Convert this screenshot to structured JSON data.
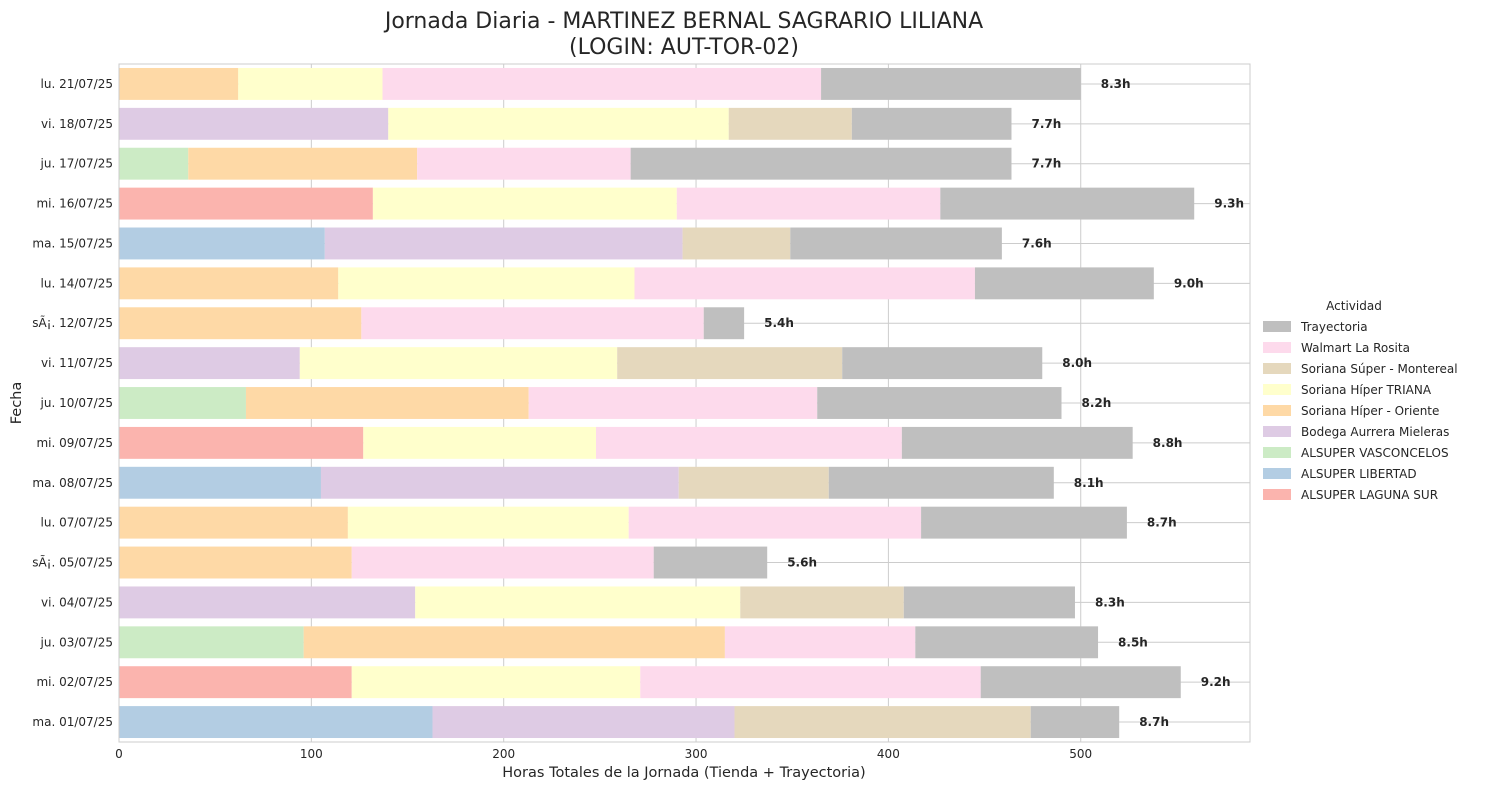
{
  "chart_data": {
    "type": "bar",
    "orientation": "horizontal",
    "stacked": true,
    "title_line1": "Jornada Diaria - MARTINEZ BERNAL SAGRARIO LILIANA",
    "title_line2": "(LOGIN: AUT-TOR-02)",
    "xlabel": "Horas Totales de la Jornada (Tienda + Trayectoria)",
    "ylabel": "Fecha",
    "xlim": [
      0,
      588
    ],
    "xticks": [
      0,
      100,
      200,
      300,
      400,
      500
    ],
    "grid": true,
    "legend": {
      "title": "Actividad",
      "placement": "right",
      "entries": [
        "Trayectoria",
        "Walmart La Rosita",
        "Soriana Súper - Montereal",
        "Soriana Híper TRIANA",
        "Soriana Híper - Oriente",
        "Bodega Aurrera Mieleras",
        "ALSUPER VASCONCELOS",
        "ALSUPER LIBERTAD",
        "ALSUPER LAGUNA SUR"
      ]
    },
    "colors": {
      "Trayectoria": "#bfbfbf",
      "Walmart La Rosita": "#fddaec",
      "Soriana Súper - Montereal": "#e5d8bd",
      "Soriana Híper TRIANA": "#ffffcc",
      "Soriana Híper - Oriente": "#fed9a6",
      "Bodega Aurrera Mieleras": "#decbe4",
      "ALSUPER VASCONCELOS": "#ccebc5",
      "ALSUPER LIBERTAD": "#b3cde3",
      "ALSUPER LAGUNA SUR": "#fbb4ae"
    },
    "categories": [
      "lu. 21/07/25",
      "vi. 18/07/25",
      "ju. 17/07/25",
      "mi. 16/07/25",
      "ma. 15/07/25",
      "lu. 14/07/25",
      "sÃ¡. 12/07/25",
      "vi. 11/07/25",
      "ju. 10/07/25",
      "mi. 09/07/25",
      "ma. 08/07/25",
      "lu. 07/07/25",
      "sÃ¡. 05/07/25",
      "vi. 04/07/25",
      "ju. 03/07/25",
      "mi. 02/07/25",
      "ma. 01/07/25"
    ],
    "rows": [
      {
        "date": "lu. 21/07/25",
        "total_label": "8.3h",
        "segments": [
          {
            "name": "Soriana Híper - Oriente",
            "value": 62
          },
          {
            "name": "Soriana Híper TRIANA",
            "value": 75
          },
          {
            "name": "Walmart La Rosita",
            "value": 228
          },
          {
            "name": "Trayectoria",
            "value": 135
          }
        ]
      },
      {
        "date": "vi. 18/07/25",
        "total_label": "7.7h",
        "segments": [
          {
            "name": "Bodega Aurrera Mieleras",
            "value": 140
          },
          {
            "name": "Soriana Híper TRIANA",
            "value": 177
          },
          {
            "name": "Soriana Súper - Montereal",
            "value": 64
          },
          {
            "name": "Trayectoria",
            "value": 83
          }
        ]
      },
      {
        "date": "ju. 17/07/25",
        "total_label": "7.7h",
        "segments": [
          {
            "name": "ALSUPER VASCONCELOS",
            "value": 36
          },
          {
            "name": "Soriana Híper - Oriente",
            "value": 119
          },
          {
            "name": "Walmart La Rosita",
            "value": 111
          },
          {
            "name": "Trayectoria",
            "value": 198
          }
        ]
      },
      {
        "date": "mi. 16/07/25",
        "total_label": "9.3h",
        "segments": [
          {
            "name": "ALSUPER LAGUNA SUR",
            "value": 132
          },
          {
            "name": "Soriana Híper TRIANA",
            "value": 158
          },
          {
            "name": "Walmart La Rosita",
            "value": 137
          },
          {
            "name": "Trayectoria",
            "value": 132
          }
        ]
      },
      {
        "date": "ma. 15/07/25",
        "total_label": "7.6h",
        "segments": [
          {
            "name": "ALSUPER LIBERTAD",
            "value": 107
          },
          {
            "name": "Bodega Aurrera Mieleras",
            "value": 186
          },
          {
            "name": "Soriana Súper - Montereal",
            "value": 56
          },
          {
            "name": "Trayectoria",
            "value": 110
          }
        ]
      },
      {
        "date": "lu. 14/07/25",
        "total_label": "9.0h",
        "segments": [
          {
            "name": "Soriana Híper - Oriente",
            "value": 114
          },
          {
            "name": "Soriana Híper TRIANA",
            "value": 154
          },
          {
            "name": "Walmart La Rosita",
            "value": 177
          },
          {
            "name": "Trayectoria",
            "value": 93
          }
        ]
      },
      {
        "date": "sÃ¡. 12/07/25",
        "total_label": "5.4h",
        "segments": [
          {
            "name": "Soriana Híper - Oriente",
            "value": 126
          },
          {
            "name": "Walmart La Rosita",
            "value": 178
          },
          {
            "name": "Trayectoria",
            "value": 21
          }
        ]
      },
      {
        "date": "vi. 11/07/25",
        "total_label": "8.0h",
        "segments": [
          {
            "name": "Bodega Aurrera Mieleras",
            "value": 94
          },
          {
            "name": "Soriana Híper TRIANA",
            "value": 165
          },
          {
            "name": "Soriana Súper - Montereal",
            "value": 117
          },
          {
            "name": "Trayectoria",
            "value": 104
          }
        ]
      },
      {
        "date": "ju. 10/07/25",
        "total_label": "8.2h",
        "segments": [
          {
            "name": "ALSUPER VASCONCELOS",
            "value": 66
          },
          {
            "name": "Soriana Híper - Oriente",
            "value": 147
          },
          {
            "name": "Walmart La Rosita",
            "value": 150
          },
          {
            "name": "Trayectoria",
            "value": 127
          }
        ]
      },
      {
        "date": "mi. 09/07/25",
        "total_label": "8.8h",
        "segments": [
          {
            "name": "ALSUPER LAGUNA SUR",
            "value": 127
          },
          {
            "name": "Soriana Híper TRIANA",
            "value": 121
          },
          {
            "name": "Walmart La Rosita",
            "value": 159
          },
          {
            "name": "Trayectoria",
            "value": 120
          }
        ]
      },
      {
        "date": "ma. 08/07/25",
        "total_label": "8.1h",
        "segments": [
          {
            "name": "ALSUPER LIBERTAD",
            "value": 105
          },
          {
            "name": "Bodega Aurrera Mieleras",
            "value": 186
          },
          {
            "name": "Soriana Súper - Montereal",
            "value": 78
          },
          {
            "name": "Trayectoria",
            "value": 117
          }
        ]
      },
      {
        "date": "lu. 07/07/25",
        "total_label": "8.7h",
        "segments": [
          {
            "name": "Soriana Híper - Oriente",
            "value": 119
          },
          {
            "name": "Soriana Híper TRIANA",
            "value": 146
          },
          {
            "name": "Walmart La Rosita",
            "value": 152
          },
          {
            "name": "Trayectoria",
            "value": 107
          }
        ]
      },
      {
        "date": "sÃ¡. 05/07/25",
        "total_label": "5.6h",
        "segments": [
          {
            "name": "Soriana Híper - Oriente",
            "value": 121
          },
          {
            "name": "Walmart La Rosita",
            "value": 157
          },
          {
            "name": "Trayectoria",
            "value": 59
          }
        ]
      },
      {
        "date": "vi. 04/07/25",
        "total_label": "8.3h",
        "segments": [
          {
            "name": "Bodega Aurrera Mieleras",
            "value": 154
          },
          {
            "name": "Soriana Híper TRIANA",
            "value": 169
          },
          {
            "name": "Soriana Súper - Montereal",
            "value": 85
          },
          {
            "name": "Trayectoria",
            "value": 89
          }
        ]
      },
      {
        "date": "ju. 03/07/25",
        "total_label": "8.5h",
        "segments": [
          {
            "name": "ALSUPER VASCONCELOS",
            "value": 96
          },
          {
            "name": "Soriana Híper - Oriente",
            "value": 219
          },
          {
            "name": "Walmart La Rosita",
            "value": 99
          },
          {
            "name": "Trayectoria",
            "value": 95
          }
        ]
      },
      {
        "date": "mi. 02/07/25",
        "total_label": "9.2h",
        "segments": [
          {
            "name": "ALSUPER LAGUNA SUR",
            "value": 121
          },
          {
            "name": "Soriana Híper TRIANA",
            "value": 150
          },
          {
            "name": "Walmart La Rosita",
            "value": 177
          },
          {
            "name": "Trayectoria",
            "value": 104
          }
        ]
      },
      {
        "date": "ma. 01/07/25",
        "total_label": "8.7h",
        "segments": [
          {
            "name": "ALSUPER LIBERTAD",
            "value": 163
          },
          {
            "name": "Bodega Aurrera Mieleras",
            "value": 157
          },
          {
            "name": "Soriana Súper - Montereal",
            "value": 154
          },
          {
            "name": "Trayectoria",
            "value": 46
          }
        ]
      }
    ]
  }
}
